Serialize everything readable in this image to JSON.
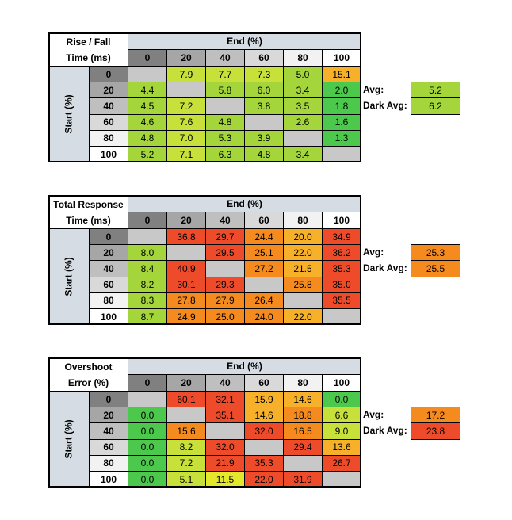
{
  "palette": {
    "x": "#c8c8c8",
    "a": "#4cc84c",
    "b": "#a4d63c",
    "c": "#c8e03a",
    "y": "#e4e82c",
    "o": "#f6b02a",
    "O": "#f58a1e",
    "r": "#ee4b2b"
  },
  "label_colors": [
    "#808080",
    "#a6a6a6",
    "#bfbfbf",
    "#d9d9d9",
    "#f2f2f2",
    "#ffffff"
  ],
  "header_color": "#d6dce4",
  "tables": [
    {
      "title_lines": [
        "Rise / Fall",
        "Time (ms)"
      ],
      "col_header": "End (%)",
      "row_header": "Start (%)",
      "columns": [
        0,
        20,
        40,
        60,
        80,
        100
      ],
      "rows": [
        {
          "label": 0,
          "cells": [
            null,
            "7.9",
            "7.7",
            "7.3",
            "5.0",
            "15.1"
          ],
          "colors": "xcccbo"
        },
        {
          "label": 20,
          "cells": [
            "4.4",
            null,
            "5.8",
            "6.0",
            "3.4",
            "2.0"
          ],
          "colors": "bxbbba"
        },
        {
          "label": 40,
          "cells": [
            "4.5",
            "7.2",
            null,
            "3.8",
            "3.5",
            "1.8"
          ],
          "colors": "bcxbba"
        },
        {
          "label": 60,
          "cells": [
            "4.6",
            "7.6",
            "4.8",
            null,
            "2.6",
            "1.6"
          ],
          "colors": "bcbxba"
        },
        {
          "label": 80,
          "cells": [
            "4.8",
            "7.0",
            "5.3",
            "3.9",
            null,
            "1.3"
          ],
          "colors": "bcbbxa"
        },
        {
          "label": 100,
          "cells": [
            "5.2",
            "7.1",
            "6.3",
            "4.8",
            "3.4",
            null
          ],
          "colors": "bcbbbx"
        }
      ],
      "summary": [
        {
          "label": "Avg:",
          "value": "5.2",
          "color": "b"
        },
        {
          "label": "Dark Avg:",
          "value": "6.2",
          "color": "b"
        }
      ]
    },
    {
      "title_lines": [
        "Total Response",
        "Time (ms)"
      ],
      "col_header": "End (%)",
      "row_header": "Start (%)",
      "columns": [
        0,
        20,
        40,
        60,
        80,
        100
      ],
      "rows": [
        {
          "label": 0,
          "cells": [
            null,
            "36.8",
            "29.7",
            "24.4",
            "20.0",
            "34.9"
          ],
          "colors": "xrrOor"
        },
        {
          "label": 20,
          "cells": [
            "8.0",
            null,
            "29.5",
            "25.1",
            "22.0",
            "36.2"
          ],
          "colors": "bxrOor"
        },
        {
          "label": 40,
          "cells": [
            "8.4",
            "40.9",
            null,
            "27.2",
            "21.5",
            "35.3"
          ],
          "colors": "brxOor"
        },
        {
          "label": 60,
          "cells": [
            "8.2",
            "30.1",
            "29.3",
            null,
            "25.8",
            "35.0"
          ],
          "colors": "brrxOr"
        },
        {
          "label": 80,
          "cells": [
            "8.3",
            "27.8",
            "27.9",
            "26.4",
            null,
            "35.5"
          ],
          "colors": "bOOOxr"
        },
        {
          "label": 100,
          "cells": [
            "8.7",
            "24.9",
            "25.0",
            "24.0",
            "22.0",
            null
          ],
          "colors": "bOOOox"
        }
      ],
      "summary": [
        {
          "label": "Avg:",
          "value": "25.3",
          "color": "O"
        },
        {
          "label": "Dark Avg:",
          "value": "25.5",
          "color": "O"
        }
      ]
    },
    {
      "title_lines": [
        "Overshoot",
        "Error (%)"
      ],
      "col_header": "End (%)",
      "row_header": "Start (%)",
      "columns": [
        0,
        20,
        40,
        60,
        80,
        100
      ],
      "rows": [
        {
          "label": 0,
          "cells": [
            null,
            "60.1",
            "32.1",
            "15.9",
            "14.6",
            "0.0"
          ],
          "colors": "xrrooa"
        },
        {
          "label": 20,
          "cells": [
            "0.0",
            null,
            "35.1",
            "14.6",
            "18.8",
            "6.6"
          ],
          "colors": "axroOc"
        },
        {
          "label": 40,
          "cells": [
            "0.0",
            "15.6",
            null,
            "32.0",
            "16.5",
            "9.0"
          ],
          "colors": "aOxrOc"
        },
        {
          "label": 60,
          "cells": [
            "0.0",
            "8.2",
            "32.0",
            null,
            "29.4",
            "13.6"
          ],
          "colors": "acrxro"
        },
        {
          "label": 80,
          "cells": [
            "0.0",
            "7.2",
            "21.9",
            "35.3",
            null,
            "26.7"
          ],
          "colors": "acrrxr"
        },
        {
          "label": 100,
          "cells": [
            "0.0",
            "5.1",
            "11.5",
            "22.0",
            "31.9",
            null
          ],
          "colors": "acyrrx"
        }
      ],
      "summary": [
        {
          "label": "Avg:",
          "value": "17.2",
          "color": "O"
        },
        {
          "label": "Dark Avg:",
          "value": "23.8",
          "color": "r"
        }
      ]
    }
  ]
}
